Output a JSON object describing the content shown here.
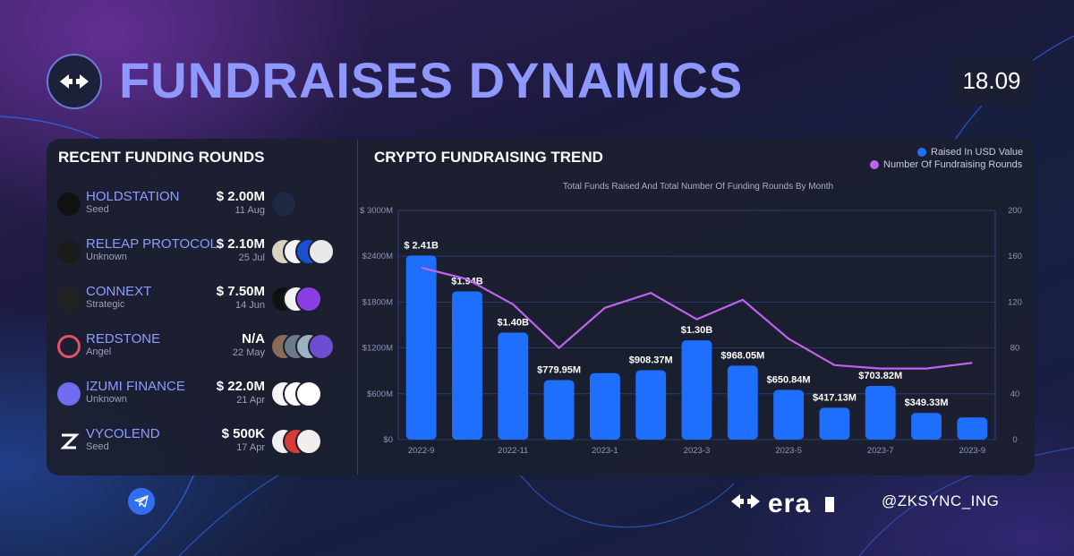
{
  "header": {
    "title": "FUNDRAISES DYNAMICS",
    "date": "18.09"
  },
  "rounds_section": {
    "title": "RECENT FUNDING ROUNDS",
    "items": [
      {
        "name": "HOLDSTATION",
        "stage": "Seed",
        "amount": "$ 2.00M",
        "date": "11 Aug",
        "icon": "holdstation-logo-icon",
        "investor_colors": [
          "#1e2a44"
        ]
      },
      {
        "name": "RELEAP PROTOCOL",
        "stage": "Unknown",
        "amount": "$ 2.10M",
        "date": "25 Jul",
        "icon": "releap-logo-icon",
        "investor_colors": [
          "#d9d2c0",
          "#f3f3f3",
          "#1a4fd0",
          "#e8e8e8"
        ]
      },
      {
        "name": "CONNEXT",
        "stage": "Strategic",
        "amount": "$ 7.50M",
        "date": "14 Jun",
        "icon": "connext-logo-icon",
        "investor_colors": [
          "#111111",
          "#f2f2f2",
          "#8b3ee6"
        ]
      },
      {
        "name": "REDSTONE",
        "stage": "Angel",
        "amount": "N/A",
        "date": "22 May",
        "icon": "redstone-logo-icon",
        "investor_colors": [
          "#8a6a58",
          "#6d7a8a",
          "#9fb0c0",
          "#6b4fd0"
        ]
      },
      {
        "name": "IZUMI FINANCE",
        "stage": "Unknown",
        "amount": "$ 22.0M",
        "date": "21 Apr",
        "icon": "izumi-logo-icon",
        "investor_colors": [
          "#f5f5f5",
          "#ffffff",
          "#ffffff"
        ]
      },
      {
        "name": "VYCOLEND",
        "stage": "Seed",
        "amount": "$ 500K",
        "date": "17 Apr",
        "icon": "vycolend-logo-icon",
        "investor_colors": [
          "#f0f0f0",
          "#d83a3a",
          "#f2eeee"
        ]
      }
    ]
  },
  "chart_section": {
    "title": "CRYPTO FUNDRAISING TREND",
    "legend": {
      "bar": "Raised In USD Value",
      "line": "Number Of Fundraising Rounds"
    },
    "subtitle": "Total Funds Raised And Total Number Of Funding Rounds By Month"
  },
  "chart_data": {
    "type": "bar",
    "title": "Total Funds Raised And Total Number Of Funding Rounds By Month",
    "categories": [
      "2022-9",
      "2022-10",
      "2022-11",
      "2022-12",
      "2023-1",
      "2023-2",
      "2023-3",
      "2023-4",
      "2023-5",
      "2023-6",
      "2023-7",
      "2023-8",
      "2023-9"
    ],
    "x_tick_labels": [
      "2022-9",
      "",
      "2022-11",
      "",
      "2023-1",
      "",
      "2023-3",
      "",
      "2023-5",
      "",
      "2023-7",
      "",
      "2023-9"
    ],
    "series": [
      {
        "name": "Raised In USD Value",
        "type": "bar",
        "axis": "left",
        "color": "#1f6fff",
        "values": [
          2410,
          1940,
          1400,
          779.95,
          870,
          908.37,
          1300,
          968.05,
          650.84,
          417.13,
          703.82,
          349.33,
          290
        ],
        "labels": [
          "$ 2.41B",
          "$1.94B",
          "$1.40B",
          "$779.95M",
          "",
          "$908.37M",
          "$1.30B",
          "$968.05M",
          "$650.84M",
          "$417.13M",
          "$703.82M",
          "$349.33M",
          ""
        ]
      },
      {
        "name": "Number Of Fundraising Rounds",
        "type": "line",
        "axis": "right",
        "color": "#c062f0",
        "values": [
          150,
          140,
          118,
          80,
          115,
          128,
          105,
          122,
          88,
          65,
          62,
          62,
          67
        ]
      }
    ],
    "y_left": {
      "ylim": [
        0,
        3000
      ],
      "ticks": [
        0,
        600,
        1200,
        1800,
        2400,
        3000
      ],
      "tick_labels": [
        "$0",
        "$600M",
        "$1200M",
        "$1800M",
        "$2400M",
        "$ 3000M"
      ]
    },
    "y_right": {
      "ylim": [
        0,
        200
      ],
      "ticks": [
        0,
        40,
        80,
        120,
        160,
        200
      ],
      "tick_labels": [
        "0",
        "40",
        "80",
        "120",
        "160",
        "200"
      ]
    },
    "grid": true,
    "legend_position": "top-right"
  },
  "footer": {
    "brand": "era",
    "handle": "@ZKSYNC_ING",
    "social_icon": "telegram-icon"
  }
}
